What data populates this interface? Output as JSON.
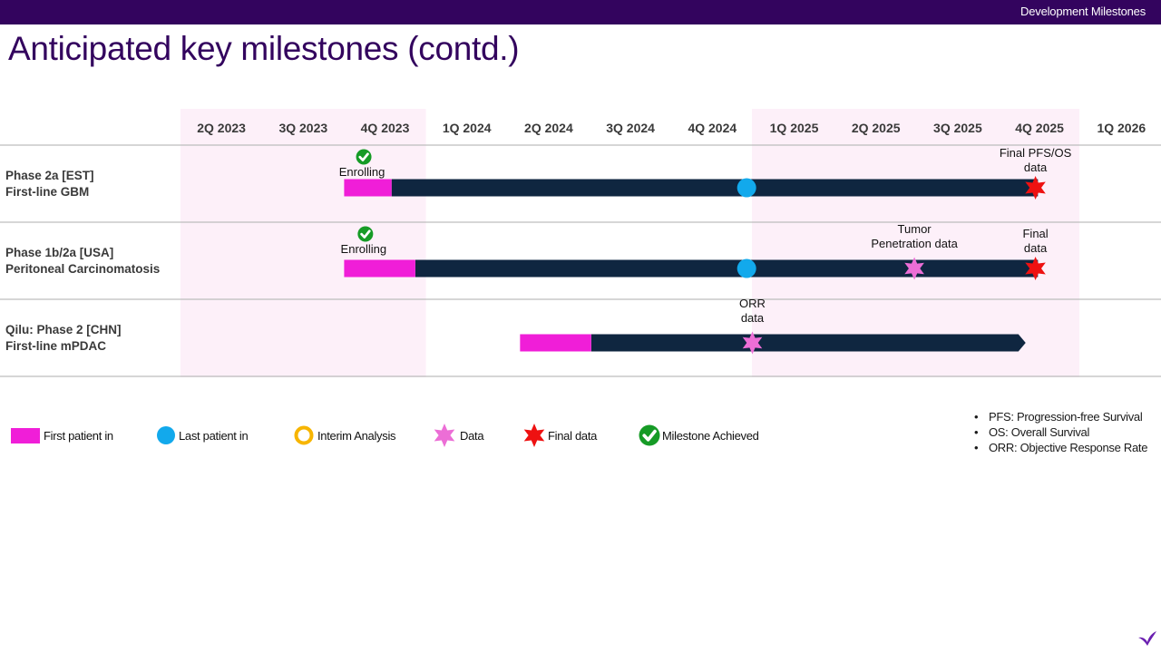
{
  "header": {
    "section_label": "Development Milestones"
  },
  "title": "Anticipated key milestones (contd.)",
  "chart_data": {
    "type": "timeline",
    "quarters": [
      "2Q 2023",
      "3Q 2023",
      "4Q 2023",
      "1Q 2024",
      "2Q 2024",
      "3Q 2024",
      "4Q 2024",
      "1Q 2025",
      "2Q 2025",
      "3Q 2025",
      "4Q 2025",
      "1Q 2026"
    ],
    "rows": [
      {
        "label_line1": "Phase 2a [EST]",
        "label_line2": "First-line GBM",
        "start": 2.0,
        "first_patient_end": 2.58,
        "end": 10.48,
        "arrow": false,
        "markers": [
          {
            "type": "achieved",
            "pos": 2.24,
            "label": [
              "Enrolling"
            ]
          },
          {
            "type": "last_patient",
            "pos": 6.92
          },
          {
            "type": "final",
            "pos": 10.45,
            "label": [
              "Final PFS/OS",
              "data"
            ]
          }
        ]
      },
      {
        "label_line1": "Phase 1b/2a [USA]",
        "label_line2": "Peritoneal Carcinomatosis",
        "start": 2.0,
        "first_patient_end": 2.87,
        "end": 10.48,
        "arrow": false,
        "markers": [
          {
            "type": "achieved",
            "pos": 2.26,
            "label": [
              "Enrolling"
            ]
          },
          {
            "type": "last_patient",
            "pos": 6.92
          },
          {
            "type": "data",
            "pos": 8.97,
            "label": [
              "Tumor",
              "Penetration data"
            ]
          },
          {
            "type": "final",
            "pos": 10.45,
            "label": [
              "Final",
              "data"
            ]
          }
        ]
      },
      {
        "label_line1": "Qilu: Phase 2 [CHN]",
        "label_line2": "First-line mPDAC",
        "start": 4.15,
        "first_patient_end": 5.02,
        "end": 10.33,
        "arrow": true,
        "markers": [
          {
            "type": "data",
            "pos": 6.99,
            "label": [
              "ORR",
              "data"
            ]
          }
        ]
      }
    ]
  },
  "legend": {
    "first_patient": "First patient in",
    "last_patient": "Last patient in",
    "interim": "Interim Analysis",
    "data": "Data",
    "final": "Final data",
    "achieved": "Milestone Achieved"
  },
  "footnotes": [
    "PFS: Progression-free Survival",
    "OS: Overall Survival",
    "ORR: Objective Response Rate"
  ],
  "colors": {
    "brand_purple": "#33045e",
    "highlight_band": "#fdf0f9",
    "bar": "#0f2640",
    "first_patient": "#f01ed8",
    "last_patient": "#12a9ec",
    "interim": "#f7b500",
    "data": "#ec6ed6",
    "final": "#ee1111",
    "achieved": "#169b26"
  }
}
